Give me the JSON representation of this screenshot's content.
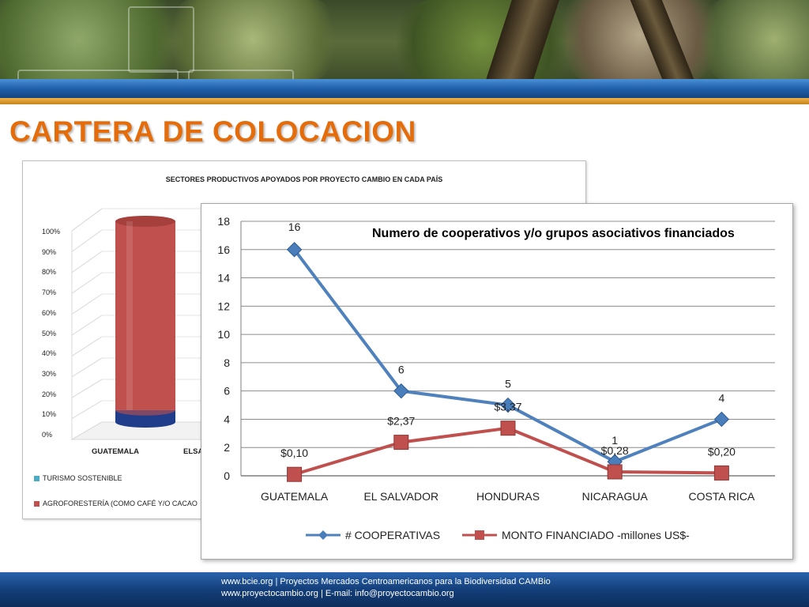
{
  "slide": {
    "title": "CARTERA DE COLOCACION",
    "footer_line1": "www.bcie.org | Proyectos Mercados Centroamericanos para la Biodiversidad CAMBio",
    "footer_line2": "www.proyectocambio.org | E-mail: info@proyectocambio.org"
  },
  "colors": {
    "title": "#e46c0a",
    "series_cooperativas": "#4f81bd",
    "series_monto": "#c0504d",
    "bar_agro": "#c0504d",
    "bar_turismo": "#1f3d8a"
  },
  "background_chart": {
    "title": "SECTORES PRODUCTIVOS APOYADOS POR PROYECTO CAMBIO EN CADA PAÍS",
    "yticks": [
      "100%",
      "90%",
      "80%",
      "70%",
      "60%",
      "50%",
      "40%",
      "30%",
      "20%",
      "10%",
      "0%"
    ],
    "categories_visible": [
      "GUATEMALA",
      "ELSA"
    ],
    "legend": [
      "TURISMO SOSTENIBLE",
      "AGROFORESTERÍA (COMO CAFÉ Y/O CACAO"
    ],
    "guatemala_turismo_share": 0.06
  },
  "chart_data": {
    "type": "line",
    "title": "Numero de cooperativos y/o grupos asociativos financiados",
    "categories": [
      "GUATEMALA",
      "EL SALVADOR",
      "HONDURAS",
      "NICARAGUA",
      "COSTA RICA"
    ],
    "ylim": [
      0,
      18
    ],
    "yticks": [
      0,
      2,
      4,
      6,
      8,
      10,
      12,
      14,
      16,
      18
    ],
    "grid": true,
    "legend_position": "bottom",
    "series": [
      {
        "name": "# COOPERATIVAS",
        "values": [
          16,
          6,
          5,
          1,
          4
        ],
        "labels": [
          "16",
          "6",
          "5",
          "1",
          "4"
        ],
        "color": "#4f81bd",
        "marker": "diamond"
      },
      {
        "name": "MONTO FINANCIADO -millones US$-",
        "values": [
          0.1,
          2.37,
          3.37,
          0.28,
          0.2
        ],
        "labels": [
          "$0,10",
          "$2,37",
          "$3,37",
          "$0,28",
          "$0,20"
        ],
        "color": "#c0504d",
        "marker": "square"
      }
    ]
  }
}
